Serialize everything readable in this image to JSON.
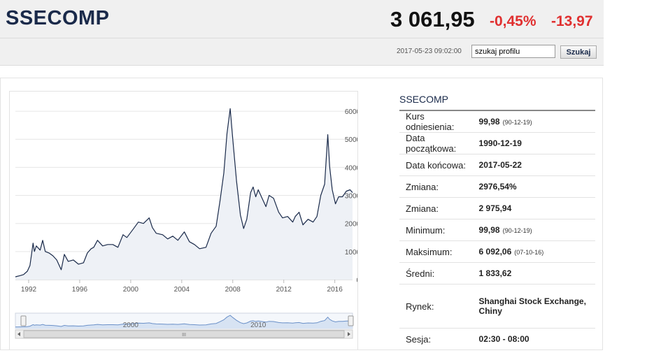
{
  "header": {
    "title": "SSECOMP",
    "price": "3 061,95",
    "change_pct": "-0,45%",
    "change_abs": "-13,97",
    "datetime": "2017-05-23 09:02:00",
    "search_value": "szukaj profilu",
    "search_button": "Szukaj"
  },
  "info": {
    "title": "SSECOMP",
    "rows": [
      {
        "label": "Kurs odniesienia:",
        "value": "99,98",
        "sub": "(90-12-19)"
      },
      {
        "label": "Data początkowa:",
        "value": "1990-12-19",
        "sub": ""
      },
      {
        "label": "Data końcowa:",
        "value": "2017-05-22",
        "sub": ""
      },
      {
        "label": "Zmiana:",
        "value": "2976,54%",
        "sub": ""
      },
      {
        "label": "Zmiana:",
        "value": "2 975,94",
        "sub": ""
      },
      {
        "label": "Minimum:",
        "value": "99,98",
        "sub": "(90-12-19)"
      },
      {
        "label": "Maksimum:",
        "value": "6 092,06",
        "sub": "(07-10-16)"
      },
      {
        "label": "Średni:",
        "value": "1 833,62",
        "sub": ""
      },
      {
        "label": "Rynek:",
        "value": "Shanghai Stock Exchange, Chiny",
        "sub": ""
      },
      {
        "label": "Sesja:",
        "value": "02:30 - 08:00",
        "sub": ""
      }
    ]
  },
  "chart_data": {
    "type": "line",
    "xlim": [
      1990.96,
      2017.39
    ],
    "ylim": [
      0,
      6500
    ],
    "yticks": [
      0,
      1000,
      2000,
      3000,
      4000,
      5000,
      6000
    ],
    "ytick_labels": [
      "0,00",
      "1000,00",
      "2000,00",
      "3000,00",
      "4000,00",
      "5000,00",
      "6000,00"
    ],
    "xticks": [
      1992,
      1996,
      2000,
      2004,
      2008,
      2012,
      2016
    ],
    "xtick_labels": [
      "1992",
      "1996",
      "2000",
      "2004",
      "2008",
      "2012",
      "2016"
    ],
    "navigator_labels": [
      {
        "x": 2000,
        "label": "2000"
      },
      {
        "x": 2010,
        "label": "2010"
      }
    ],
    "navigator_grip": "III",
    "grid": true,
    "legend": "none",
    "colors": {
      "line": "#1a2a4a",
      "area": "#eef1f6",
      "navigator_line": "#6a90c8",
      "navigator_fill": "#d7e3f3"
    },
    "series": [
      {
        "x": [
          1990.96,
          1991.3,
          1991.6,
          1991.9,
          1992.1,
          1992.35,
          1992.45,
          1992.6,
          1992.9,
          1993.1,
          1993.3,
          1993.6,
          1993.9,
          1994.2,
          1994.55,
          1994.8,
          1995.1,
          1995.5,
          1995.9,
          1996.3,
          1996.6,
          1996.9,
          1997.1,
          1997.4,
          1997.8,
          1998.2,
          1998.6,
          1999.0,
          1999.4,
          1999.7,
          2000.2,
          2000.6,
          2001.0,
          2001.45,
          2001.7,
          2002.0,
          2002.5,
          2002.9,
          2003.3,
          2003.7,
          2004.2,
          2004.6,
          2005.0,
          2005.4,
          2005.9,
          2006.3,
          2006.7,
          2007.0,
          2007.3,
          2007.55,
          2007.8,
          2008.0,
          2008.3,
          2008.6,
          2008.85,
          2009.1,
          2009.4,
          2009.6,
          2009.8,
          2010.0,
          2010.3,
          2010.6,
          2010.85,
          2011.2,
          2011.6,
          2011.9,
          2012.3,
          2012.7,
          2012.9,
          2013.2,
          2013.5,
          2013.9,
          2014.3,
          2014.6,
          2014.9,
          2015.2,
          2015.45,
          2015.6,
          2015.8,
          2016.05,
          2016.3,
          2016.6,
          2016.9,
          2017.2,
          2017.39
        ],
        "y": [
          100,
          140,
          180,
          300,
          500,
          1300,
          1000,
          1200,
          1050,
          1400,
          1000,
          950,
          850,
          700,
          350,
          900,
          650,
          700,
          550,
          600,
          950,
          1100,
          1150,
          1400,
          1200,
          1250,
          1250,
          1150,
          1600,
          1500,
          1800,
          2050,
          2000,
          2200,
          1850,
          1650,
          1600,
          1450,
          1550,
          1400,
          1700,
          1350,
          1250,
          1100,
          1150,
          1650,
          1900,
          2800,
          3800,
          5200,
          6092,
          5000,
          3500,
          2300,
          1820,
          2150,
          3100,
          3300,
          2950,
          3200,
          2900,
          2600,
          3000,
          2900,
          2400,
          2200,
          2250,
          2050,
          2250,
          2400,
          1950,
          2150,
          2050,
          2250,
          3000,
          3400,
          5166,
          4000,
          3200,
          2700,
          2950,
          2950,
          3150,
          3200,
          3100
        ]
      }
    ]
  }
}
